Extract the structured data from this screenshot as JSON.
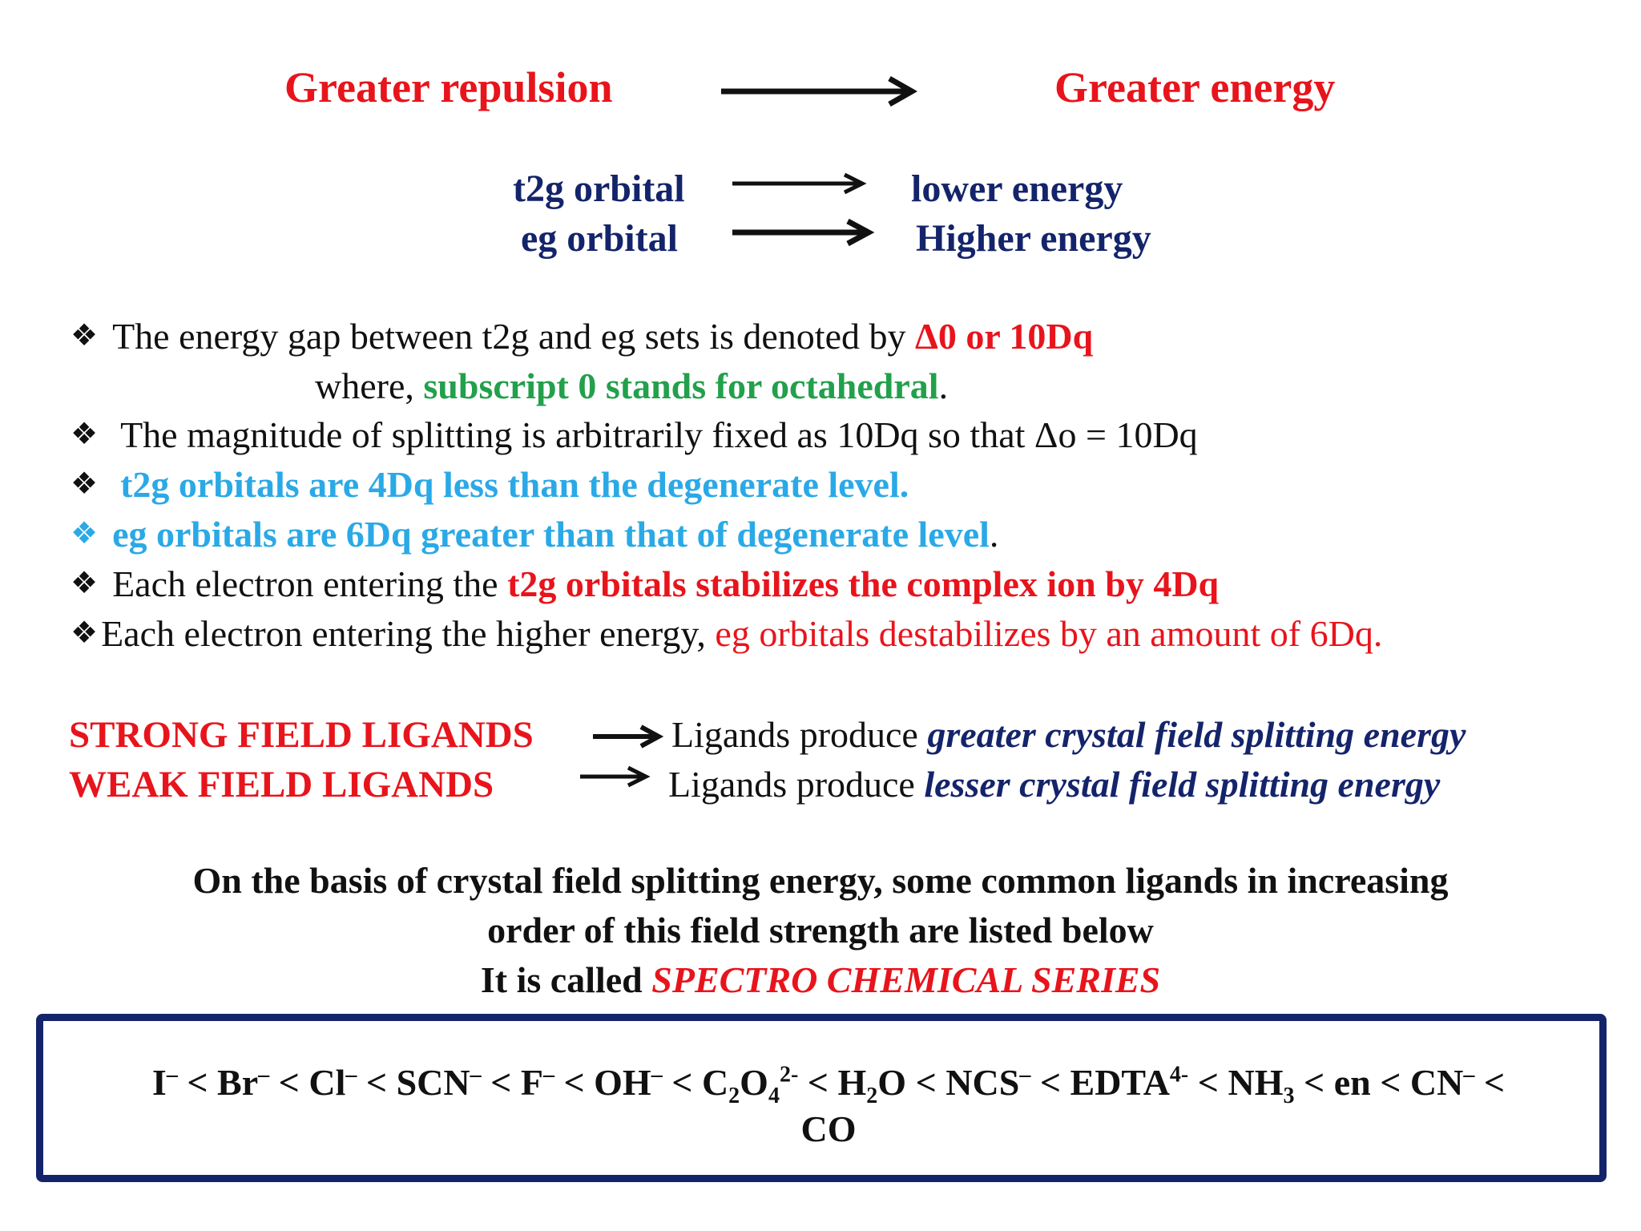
{
  "header": {
    "left": "Greater repulsion",
    "right": "Greater energy"
  },
  "orbitals": [
    {
      "name": "t2g orbital",
      "energy": "lower energy"
    },
    {
      "name": "eg orbital",
      "energy": "Higher energy"
    }
  ],
  "bullets": {
    "b1_text": "The energy gap between t2g and eg sets is denoted by ",
    "b1_highlight": "Δ0 or 10Dq",
    "b1_cont_prefix": "where, ",
    "b1_cont_highlight": "subscript 0 stands for octahedral",
    "b1_cont_suffix": ".",
    "b2_text": "The magnitude of splitting is arbitrarily fixed as 10Dq so that Δo = 10Dq",
    "b3_text": "t2g orbitals are 4Dq less than the degenerate level.",
    "b4_text": "eg orbitals are 6Dq greater than that of degenerate level",
    "b4_suffix": ".",
    "b5_text": "Each electron entering the ",
    "b5_highlight": "t2g orbitals stabilizes the complex ion by 4Dq",
    "b6_text": "Each electron entering the higher energy, ",
    "b6_highlight": "eg orbitals destabilizes by an amount of 6Dq.",
    "bullet_symbol": "❖"
  },
  "ligands": [
    {
      "label": "STRONG FIELD LIGANDS",
      "prefix": "Ligands produce ",
      "desc": "greater crystal field splitting energy"
    },
    {
      "label": "WEAK FIELD LIGANDS",
      "prefix": "Ligands produce ",
      "desc": "lesser crystal field splitting energy"
    }
  ],
  "footer": {
    "line1": "On the basis of crystal field splitting energy, some common ligands in increasing",
    "line2": "order of this field strength are listed below",
    "line3_prefix": "It is called ",
    "line3_highlight": "SPECTRO CHEMICAL SERIES"
  },
  "series": {
    "lt": " < ",
    "i": "I",
    "br": "Br",
    "cl": "Cl",
    "scn": "SCN",
    "f": "F",
    "oh": "OH",
    "c2o4_c": "C",
    "c2o4_sub1": "2",
    "c2o4_o": "O",
    "c2o4_sub2": "4",
    "c2o4_charge": "2-",
    "h2o_h": "H",
    "h2o_sub": "2",
    "h2o_o": "O",
    "ncs": "NCS",
    "edta": "EDTA",
    "edta_charge": "4-",
    "nh3": "NH",
    "nh3_sub": "3",
    "en": "en",
    "cn": "CN",
    "minus": "–",
    "co": "CO"
  }
}
